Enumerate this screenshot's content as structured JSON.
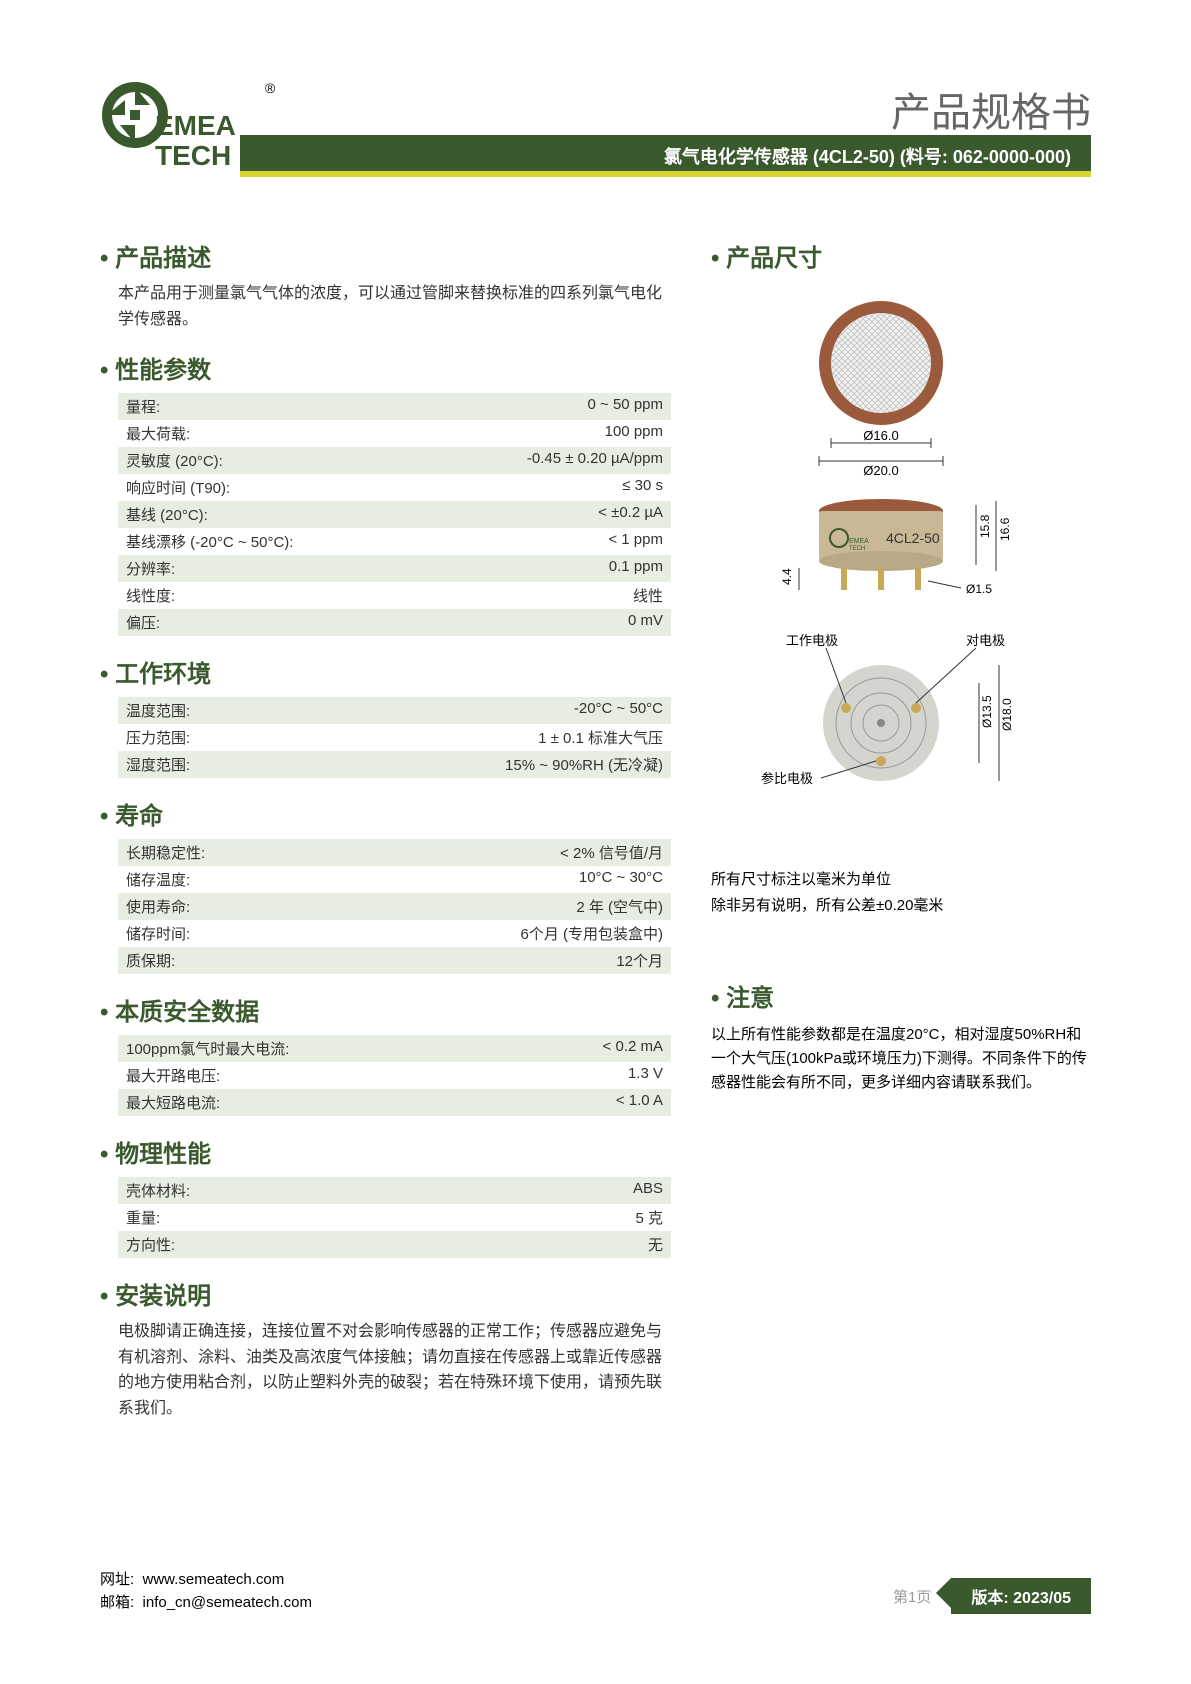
{
  "header": {
    "brand": "EMEA TECH",
    "trademark": "®",
    "doc_title": "产品规格书",
    "banner": "氯气电化学传感器 (4CL2-50) (料号: 062-0000-000)"
  },
  "logo_colors": {
    "green": "#3a5a2e",
    "accent": "#d4d433"
  },
  "left_sections": [
    {
      "title": "产品描述",
      "type": "text",
      "text": "本产品用于测量氯气气体的浓度，可以通过管脚来替换标准的四系列氯气电化学传感器。"
    },
    {
      "title": "性能参数",
      "type": "table",
      "rows": [
        {
          "label": "量程:",
          "value": "0 ~ 50 ppm"
        },
        {
          "label": "最大荷载:",
          "value": "100 ppm"
        },
        {
          "label": "灵敏度 (20°C):",
          "value": "-0.45 ± 0.20 µA/ppm"
        },
        {
          "label": "响应时间 (T90):",
          "value": "≤ 30 s"
        },
        {
          "label": "基线 (20°C):",
          "value": "< ±0.2 µA"
        },
        {
          "label": "基线漂移 (-20°C ~ 50°C):",
          "value": "< 1 ppm"
        },
        {
          "label": "分辨率:",
          "value": "0.1 ppm"
        },
        {
          "label": "线性度:",
          "value": "线性"
        },
        {
          "label": "偏压:",
          "value": "0 mV"
        }
      ]
    },
    {
      "title": "工作环境",
      "type": "table",
      "rows": [
        {
          "label": "温度范围:",
          "value": "-20°C ~ 50°C"
        },
        {
          "label": "压力范围:",
          "value": "1 ± 0.1 标准大气压"
        },
        {
          "label": "湿度范围:",
          "value": "15% ~ 90%RH (无冷凝)"
        }
      ]
    },
    {
      "title": "寿命",
      "type": "table",
      "rows": [
        {
          "label": "长期稳定性:",
          "value": "< 2% 信号值/月"
        },
        {
          "label": "储存温度:",
          "value": "10°C ~ 30°C"
        },
        {
          "label": "使用寿命:",
          "value": "2 年 (空气中)"
        },
        {
          "label": "储存时间:",
          "value": "6个月 (专用包装盒中)"
        },
        {
          "label": "质保期:",
          "value": "12个月"
        }
      ]
    },
    {
      "title": "本质安全数据",
      "type": "table",
      "rows": [
        {
          "label": "100ppm氯气时最大电流:",
          "value": "< 0.2 mA"
        },
        {
          "label": "最大开路电压:",
          "value": "1.3 V"
        },
        {
          "label": "最大短路电流:",
          "value": "< 1.0 A"
        }
      ]
    },
    {
      "title": "物理性能",
      "type": "table",
      "rows": [
        {
          "label": "壳体材料:",
          "value": "ABS"
        },
        {
          "label": "重量:",
          "value": "5 克"
        },
        {
          "label": "方向性:",
          "value": "无"
        }
      ]
    },
    {
      "title": "安装说明",
      "type": "text",
      "text": "电极脚请正确连接，连接位置不对会影响传感器的正常工作；传感器应避免与有机溶剂、涂料、油类及高浓度气体接触；请勿直接在传感器上或靠近传感器的地方使用粘合剂，以防止塑料外壳的破裂；若在特殊环境下使用，请预先联系我们。"
    }
  ],
  "right": {
    "dimensions_title": "产品尺寸",
    "diagram": {
      "top_view": {
        "inner_d": "Ø16.0",
        "outer_d": "Ø20.0",
        "ring_color": "#9b5a3c",
        "mesh_color": "#d0d0d0"
      },
      "side_view": {
        "label": "4CL2-50",
        "body_h": "15.8",
        "total_h": "16.6",
        "pin_h": "4.4",
        "pin_d": "Ø1.5",
        "body_color": "#c8b896",
        "pin_color": "#c9a857"
      },
      "bottom_view": {
        "pins": [
          {
            "label": "工作电极",
            "pos": "left"
          },
          {
            "label": "对电极",
            "pos": "right"
          },
          {
            "label": "参比电极",
            "pos": "bottom"
          }
        ],
        "pitch_d": "Ø13.5",
        "outer_d": "Ø18.0",
        "body_color": "#d5d5d0"
      }
    },
    "dim_note1": "所有尺寸标注以毫米为单位",
    "dim_note2": "除非另有说明，所有公差±0.20毫米",
    "attention_title": "注意",
    "attention_text": "以上所有性能参数都是在温度20°C，相对湿度50%RH和一个大气压(100kPa或环境压力)下测得。不同条件下的传感器性能会有所不同，更多详细内容请联系我们。"
  },
  "footer": {
    "url_label": "网址:",
    "url": "www.semeatech.com",
    "email_label": "邮箱:",
    "email": "info_cn@semeatech.com",
    "page": "第1页",
    "version": "版本: 2023/05"
  }
}
